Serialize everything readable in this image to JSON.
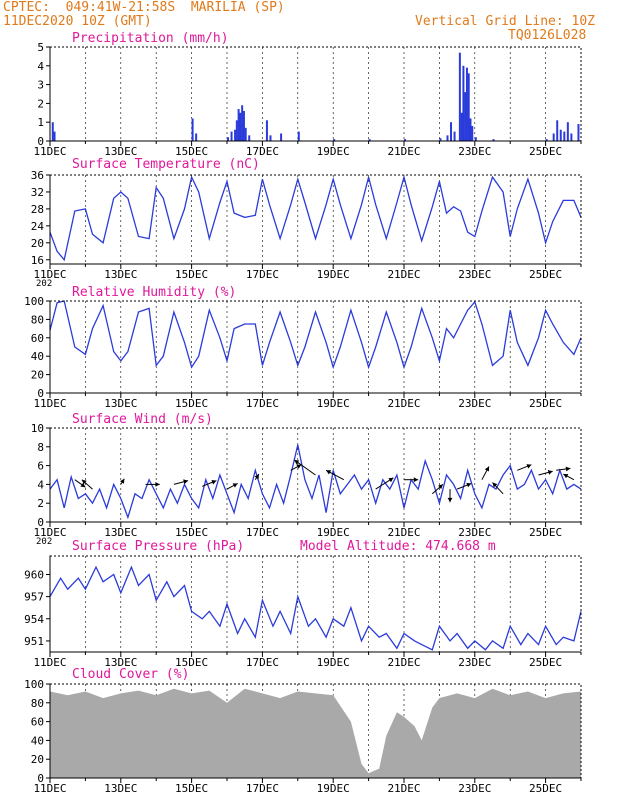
{
  "header": {
    "station": "CPTEC:  049:41W-21:58S  MARILIA (SP)",
    "run": "11DEC2020 10Z (GMT)",
    "grid_note": "Vertical Grid Line: 10Z",
    "code": "TQ0126L028",
    "altitude_label": "Model Altitude: 474.668 m"
  },
  "x_axis": {
    "labels": [
      "11DEC",
      "13DEC",
      "15DEC",
      "17DEC",
      "19DEC",
      "21DEC",
      "23DEC",
      "25DEC"
    ],
    "label_days": [
      0,
      2,
      4,
      6,
      8,
      10,
      12,
      14
    ],
    "range_days": [
      0,
      15
    ],
    "stray_label": "202"
  },
  "colors": {
    "title": "#e0189a",
    "header": "#e07a1a",
    "series": "#2b3bdb",
    "cloud": "#a9a9a9",
    "wind_arrow": "#000000"
  },
  "chart_data": [
    {
      "id": "precip",
      "type": "bar",
      "title": "Precipitation (mm/h)",
      "ylim": [
        0,
        5
      ],
      "yticks": [
        0,
        1,
        2,
        3,
        4,
        5
      ],
      "bars": [
        [
          0.05,
          1.0
        ],
        [
          0.1,
          0.5
        ],
        [
          4.0,
          1.2
        ],
        [
          4.1,
          0.4
        ],
        [
          5.0,
          0.2
        ],
        [
          5.1,
          0.5
        ],
        [
          5.2,
          0.6
        ],
        [
          5.25,
          1.1
        ],
        [
          5.3,
          1.7
        ],
        [
          5.35,
          1.5
        ],
        [
          5.4,
          1.9
        ],
        [
          5.45,
          1.6
        ],
        [
          5.5,
          0.7
        ],
        [
          5.6,
          0.3
        ],
        [
          6.1,
          1.1
        ],
        [
          6.2,
          0.3
        ],
        [
          6.5,
          0.4
        ],
        [
          7.0,
          0.5
        ],
        [
          8.0,
          0.1
        ],
        [
          9.0,
          0.1
        ],
        [
          10.0,
          0.1
        ],
        [
          11.0,
          0.15
        ],
        [
          11.2,
          0.3
        ],
        [
          11.3,
          1.0
        ],
        [
          11.4,
          0.5
        ],
        [
          11.55,
          4.7
        ],
        [
          11.6,
          1.5
        ],
        [
          11.65,
          4.0
        ],
        [
          11.7,
          2.6
        ],
        [
          11.75,
          3.9
        ],
        [
          11.8,
          3.6
        ],
        [
          11.85,
          1.2
        ],
        [
          11.9,
          0.8
        ],
        [
          12.0,
          0.2
        ],
        [
          12.5,
          0.1
        ],
        [
          14.0,
          0.1
        ],
        [
          14.2,
          0.4
        ],
        [
          14.3,
          1.1
        ],
        [
          14.4,
          0.6
        ],
        [
          14.5,
          0.5
        ],
        [
          14.6,
          1.0
        ],
        [
          14.7,
          0.4
        ],
        [
          14.9,
          0.9
        ]
      ]
    },
    {
      "id": "temp",
      "type": "line",
      "title": "Surface Temperature (nC)",
      "ylim": [
        15,
        36
      ],
      "yticks": [
        16,
        20,
        24,
        28,
        32,
        36
      ],
      "x": [
        0,
        0.2,
        0.4,
        0.7,
        1.0,
        1.2,
        1.5,
        1.8,
        2.0,
        2.2,
        2.5,
        2.8,
        3.0,
        3.2,
        3.5,
        3.8,
        4.0,
        4.2,
        4.5,
        4.8,
        5.0,
        5.2,
        5.5,
        5.8,
        6.0,
        6.2,
        6.5,
        6.8,
        7.0,
        7.2,
        7.5,
        7.8,
        8.0,
        8.2,
        8.5,
        8.8,
        9.0,
        9.2,
        9.5,
        9.8,
        10.0,
        10.2,
        10.5,
        10.8,
        11.0,
        11.2,
        11.4,
        11.6,
        11.8,
        12.0,
        12.2,
        12.5,
        12.8,
        13.0,
        13.2,
        13.5,
        13.8,
        14.0,
        14.2,
        14.5,
        14.8,
        15.0
      ],
      "values": [
        22.5,
        18.0,
        16.0,
        27.5,
        28.0,
        22.0,
        20.0,
        30.5,
        32.0,
        30.5,
        21.5,
        21.0,
        33.0,
        30.5,
        21.0,
        28.0,
        35.5,
        32.0,
        21.0,
        29.5,
        34.5,
        27.0,
        26.0,
        26.5,
        35.0,
        29.0,
        21.0,
        29.0,
        35.0,
        29.5,
        21.0,
        29.0,
        35.0,
        29.0,
        21.0,
        29.0,
        35.5,
        29.0,
        21.0,
        29.5,
        35.5,
        29.0,
        20.5,
        28.5,
        34.5,
        27.0,
        28.5,
        27.5,
        22.5,
        21.5,
        27.5,
        35.5,
        32.0,
        21.5,
        28.0,
        35.0,
        27.0,
        20.0,
        25.0,
        30.0,
        30.0,
        26.0
      ]
    },
    {
      "id": "rh",
      "type": "line",
      "title": "Relative Humidity (%)",
      "ylim": [
        0,
        100
      ],
      "yticks": [
        0,
        20,
        40,
        60,
        80,
        100
      ],
      "x": [
        0,
        0.2,
        0.4,
        0.7,
        1.0,
        1.2,
        1.5,
        1.8,
        2.0,
        2.2,
        2.5,
        2.8,
        3.0,
        3.2,
        3.5,
        3.8,
        4.0,
        4.2,
        4.5,
        4.8,
        5.0,
        5.2,
        5.5,
        5.8,
        6.0,
        6.2,
        6.5,
        6.8,
        7.0,
        7.2,
        7.5,
        7.8,
        8.0,
        8.2,
        8.5,
        8.8,
        9.0,
        9.2,
        9.5,
        9.8,
        10.0,
        10.2,
        10.5,
        10.8,
        11.0,
        11.2,
        11.4,
        11.6,
        11.8,
        12.0,
        12.2,
        12.5,
        12.8,
        13.0,
        13.2,
        13.5,
        13.8,
        14.0,
        14.2,
        14.5,
        14.8,
        15.0
      ],
      "values": [
        68,
        98,
        100,
        50,
        42,
        70,
        95,
        45,
        35,
        45,
        88,
        92,
        30,
        40,
        88,
        55,
        28,
        40,
        90,
        60,
        35,
        70,
        75,
        75,
        30,
        55,
        88,
        55,
        30,
        50,
        88,
        55,
        28,
        50,
        90,
        55,
        28,
        50,
        88,
        55,
        28,
        50,
        92,
        60,
        35,
        70,
        60,
        75,
        90,
        99,
        75,
        30,
        40,
        90,
        55,
        30,
        60,
        90,
        75,
        55,
        42,
        60
      ]
    },
    {
      "id": "wind",
      "type": "line",
      "title": "Surface Wind (m/s)",
      "ylim": [
        0,
        10
      ],
      "yticks": [
        0,
        2,
        4,
        6,
        8,
        10
      ],
      "x": [
        0,
        0.2,
        0.4,
        0.6,
        0.8,
        1.0,
        1.2,
        1.4,
        1.6,
        1.8,
        2.0,
        2.2,
        2.4,
        2.6,
        2.8,
        3.0,
        3.2,
        3.4,
        3.6,
        3.8,
        4.0,
        4.2,
        4.4,
        4.6,
        4.8,
        5.0,
        5.2,
        5.4,
        5.6,
        5.8,
        6.0,
        6.2,
        6.4,
        6.6,
        6.8,
        7.0,
        7.2,
        7.4,
        7.6,
        7.8,
        8.0,
        8.2,
        8.4,
        8.6,
        8.8,
        9.0,
        9.2,
        9.4,
        9.6,
        9.8,
        10.0,
        10.2,
        10.4,
        10.6,
        10.8,
        11.0,
        11.2,
        11.4,
        11.6,
        11.8,
        12.0,
        12.2,
        12.4,
        12.6,
        12.8,
        13.0,
        13.2,
        13.4,
        13.6,
        13.8,
        14.0,
        14.2,
        14.4,
        14.6,
        14.8,
        15.0
      ],
      "values": [
        3.5,
        4.5,
        1.5,
        4.8,
        2.5,
        3.0,
        2.0,
        3.5,
        1.5,
        4.0,
        2.5,
        0.5,
        3.0,
        2.5,
        4.5,
        3.0,
        1.5,
        3.5,
        2.0,
        4.0,
        2.5,
        1.5,
        4.5,
        2.5,
        5.0,
        3.0,
        1.0,
        4.0,
        2.5,
        5.5,
        3.0,
        1.5,
        4.0,
        2.0,
        5.0,
        8.2,
        4.5,
        2.5,
        5.0,
        1.0,
        5.5,
        3.0,
        4.0,
        5.0,
        3.5,
        4.5,
        2.0,
        4.5,
        3.5,
        5.0,
        1.5,
        4.5,
        3.5,
        6.5,
        4.5,
        2.0,
        5.0,
        4.0,
        2.5,
        5.5,
        3.0,
        1.5,
        4.0,
        3.5,
        5.0,
        6.0,
        3.5,
        4.0,
        5.5,
        3.5,
        4.5,
        3.0,
        5.5,
        3.5,
        4.0,
        3.5
      ],
      "arrows": [
        [
          0.7,
          4.5,
          0.3,
          -0.4
        ],
        [
          1.2,
          3.5,
          -0.3,
          0.5
        ],
        [
          2.0,
          4.0,
          0.1,
          0.3
        ],
        [
          2.7,
          4.0,
          0.4,
          0.0
        ],
        [
          3.5,
          4.0,
          0.4,
          0.2
        ],
        [
          4.3,
          3.8,
          0.4,
          0.3
        ],
        [
          5.0,
          3.5,
          0.3,
          0.3
        ],
        [
          5.8,
          4.5,
          0.1,
          0.3
        ],
        [
          6.8,
          5.5,
          0.3,
          0.3
        ],
        [
          7.5,
          5.0,
          -0.6,
          0.8
        ],
        [
          8.3,
          4.5,
          -0.5,
          0.5
        ],
        [
          9.2,
          3.5,
          0.5,
          0.6
        ],
        [
          10.0,
          4.5,
          0.4,
          0.0
        ],
        [
          10.8,
          3.0,
          0.3,
          0.5
        ],
        [
          11.3,
          3.5,
          0.0,
          -0.7
        ],
        [
          11.5,
          3.5,
          0.4,
          0.3
        ],
        [
          12.2,
          4.5,
          0.2,
          0.7
        ],
        [
          12.8,
          3.0,
          -0.3,
          0.6
        ],
        [
          13.2,
          5.5,
          0.4,
          0.3
        ],
        [
          13.8,
          5.0,
          0.4,
          0.2
        ],
        [
          14.3,
          5.5,
          0.4,
          0.1
        ],
        [
          14.8,
          4.5,
          -0.3,
          0.3
        ]
      ]
    },
    {
      "id": "pressure",
      "type": "line",
      "title": "Surface Pressure (hPa)",
      "ylim": [
        949.5,
        962.5
      ],
      "yticks": [
        951,
        954,
        957,
        960
      ],
      "x": [
        0,
        0.3,
        0.5,
        0.8,
        1.0,
        1.3,
        1.5,
        1.8,
        2.0,
        2.3,
        2.5,
        2.8,
        3.0,
        3.3,
        3.5,
        3.8,
        4.0,
        4.3,
        4.5,
        4.8,
        5.0,
        5.3,
        5.5,
        5.8,
        6.0,
        6.3,
        6.5,
        6.8,
        7.0,
        7.3,
        7.5,
        7.8,
        8.0,
        8.3,
        8.5,
        8.8,
        9.0,
        9.3,
        9.5,
        9.8,
        10.0,
        10.3,
        10.5,
        10.8,
        11.0,
        11.3,
        11.5,
        11.8,
        12.0,
        12.3,
        12.5,
        12.8,
        13.0,
        13.3,
        13.5,
        13.8,
        14.0,
        14.3,
        14.5,
        14.8,
        15.0
      ],
      "values": [
        957,
        959.5,
        958,
        959.5,
        958,
        961,
        959,
        960,
        957.5,
        961,
        958.5,
        960,
        956.5,
        959,
        957,
        958.5,
        955,
        954,
        955,
        953,
        956,
        952,
        954,
        951.5,
        956.5,
        953,
        955,
        952,
        957,
        953,
        954,
        951.5,
        954,
        953,
        955.5,
        951,
        953,
        951.5,
        952,
        950,
        952,
        951,
        950.5,
        949.8,
        953,
        951,
        952,
        950,
        951,
        949.8,
        951,
        950,
        953,
        950.5,
        952,
        950.5,
        953,
        950.5,
        951.5,
        951,
        955
      ]
    },
    {
      "id": "cloud",
      "type": "area",
      "title": "Cloud Cover (%)",
      "ylim": [
        0,
        100
      ],
      "yticks": [
        0,
        20,
        40,
        60,
        80,
        100
      ],
      "x": [
        0,
        0.5,
        1.0,
        1.5,
        2.0,
        2.5,
        3.0,
        3.5,
        4.0,
        4.5,
        5.0,
        5.5,
        6.0,
        6.5,
        7.0,
        7.5,
        8.0,
        8.5,
        8.8,
        9.0,
        9.3,
        9.5,
        9.8,
        10.0,
        10.3,
        10.5,
        10.8,
        11.0,
        11.5,
        12.0,
        12.5,
        13.0,
        13.5,
        14.0,
        14.5,
        15.0
      ],
      "values": [
        92,
        88,
        92,
        85,
        90,
        93,
        88,
        95,
        90,
        93,
        80,
        95,
        90,
        85,
        92,
        90,
        88,
        60,
        15,
        5,
        10,
        45,
        70,
        65,
        55,
        40,
        75,
        85,
        90,
        85,
        95,
        88,
        92,
        85,
        90,
        92
      ]
    }
  ]
}
